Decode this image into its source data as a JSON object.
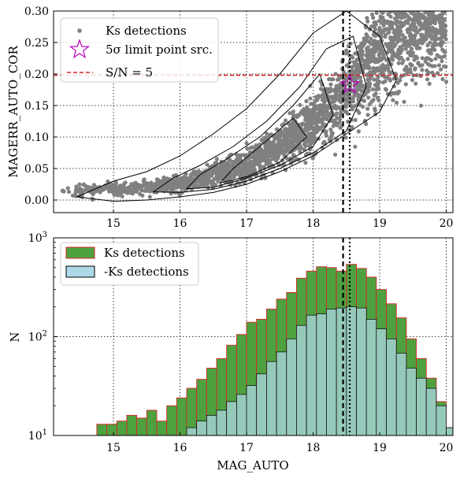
{
  "chart_data": [
    {
      "type": "scatter",
      "xlabel": "",
      "ylabel": "MAGERR_AUTO_COR",
      "xlim": [
        14.1,
        20.1
      ],
      "ylim": [
        -0.02,
        0.3
      ],
      "xticks": [
        "15",
        "16",
        "17",
        "18",
        "19",
        "20"
      ],
      "yticks": [
        "0.00",
        "0.05",
        "0.10",
        "0.15",
        "0.20",
        "0.25",
        "0.30"
      ],
      "grid": true,
      "legend_position": "top-left",
      "legend": [
        "Ks detections",
        "5σ limit point src.",
        "S/N = 5"
      ],
      "series": [
        {
          "name": "Ks detections",
          "style": "scatter",
          "color": "#808080",
          "trend": {
            "x": [
              14.2,
              14.8,
              15.0,
              15.5,
              16.0,
              16.5,
              17.0,
              17.5,
              18.0,
              18.5,
              19.0,
              19.5,
              20.0
            ],
            "y": [
              0.015,
              0.016,
              0.018,
              0.02,
              0.027,
              0.04,
              0.057,
              0.085,
              0.123,
              0.17,
              0.232,
              0.29,
              0.3
            ]
          }
        },
        {
          "name": "5σ limit point src.",
          "style": "marker-star",
          "color": "#bf00bf",
          "x": [
            18.55
          ],
          "y": [
            0.183
          ]
        },
        {
          "name": "S/N = 5",
          "style": "dashed-horizontal",
          "color": "#d62728",
          "y": 0.198
        }
      ],
      "vlines": [
        {
          "x": 18.45,
          "style": "dashed",
          "color": "#000000"
        },
        {
          "x": 18.55,
          "style": "dotted",
          "color": "#000000"
        }
      ],
      "contours": [
        {
          "level": 1,
          "x": [
            14.45,
            15.0,
            15.5,
            16.0,
            16.5,
            17.0,
            17.5,
            18.0,
            18.5,
            19.0,
            19.25,
            19.0,
            18.5,
            18.0,
            17.5,
            17.0,
            16.5,
            16.0,
            15.5,
            15.0,
            14.45
          ],
          "y": [
            0.005,
            -0.002,
            0.0,
            0.005,
            0.012,
            0.025,
            0.045,
            0.07,
            0.105,
            0.14,
            0.19,
            0.26,
            0.3,
            0.265,
            0.2,
            0.145,
            0.105,
            0.07,
            0.045,
            0.03,
            0.005
          ]
        },
        {
          "level": 2,
          "x": [
            15.6,
            16.0,
            16.5,
            17.0,
            17.5,
            18.0,
            18.5,
            18.8,
            18.6,
            18.2,
            17.8,
            17.3,
            16.8,
            16.3,
            15.9,
            15.6
          ],
          "y": [
            0.013,
            0.012,
            0.017,
            0.03,
            0.05,
            0.075,
            0.11,
            0.18,
            0.26,
            0.24,
            0.18,
            0.125,
            0.085,
            0.055,
            0.035,
            0.013
          ]
        },
        {
          "level": 3,
          "x": [
            16.1,
            16.5,
            17.0,
            17.5,
            18.0,
            18.3,
            18.1,
            17.7,
            17.2,
            16.7,
            16.3,
            16.1
          ],
          "y": [
            0.018,
            0.02,
            0.035,
            0.055,
            0.085,
            0.135,
            0.2,
            0.15,
            0.1,
            0.065,
            0.04,
            0.018
          ]
        },
        {
          "level": 4,
          "x": [
            16.6,
            17.0,
            17.5,
            17.9,
            17.7,
            17.2,
            16.8,
            16.6
          ],
          "y": [
            0.027,
            0.037,
            0.06,
            0.1,
            0.13,
            0.085,
            0.05,
            0.027
          ]
        }
      ]
    },
    {
      "type": "bar",
      "style": "histogram",
      "xlabel": "MAG_AUTO",
      "ylabel": "N",
      "yscale": "log",
      "xlim": [
        14.1,
        20.1
      ],
      "ylim": [
        10,
        1000
      ],
      "xticks": [
        "15",
        "16",
        "17",
        "18",
        "19",
        "20"
      ],
      "yticks": [
        "10^1",
        "10^2",
        "10^3"
      ],
      "grid": true,
      "legend_position": "top-left",
      "legend": [
        "Ks detections",
        "-Ks detections"
      ],
      "bin_edges": [
        14.75,
        14.9,
        15.05,
        15.2,
        15.35,
        15.5,
        15.65,
        15.8,
        15.95,
        16.1,
        16.25,
        16.4,
        16.55,
        16.7,
        16.85,
        17.0,
        17.15,
        17.3,
        17.45,
        17.6,
        17.75,
        17.9,
        18.05,
        18.2,
        18.35,
        18.5,
        18.65,
        18.8,
        18.95,
        19.1,
        19.25,
        19.4,
        19.55,
        19.7,
        19.85,
        20.0,
        20.15
      ],
      "series": [
        {
          "name": "Ks detections",
          "color": "#4ea13f",
          "edgecolor": "#d62728",
          "values": [
            13,
            13,
            14,
            16,
            15,
            18,
            14,
            20,
            24,
            30,
            37,
            48,
            60,
            82,
            105,
            140,
            150,
            190,
            240,
            280,
            390,
            460,
            510,
            500,
            460,
            540,
            490,
            400,
            300,
            215,
            155,
            95,
            60,
            38,
            22,
            12
          ]
        },
        {
          "name": "-Ks detections",
          "color": "#add8e6",
          "edgecolor": "#000000",
          "values": [
            0,
            0,
            0,
            0,
            0,
            0,
            0,
            0,
            0,
            12,
            14,
            16,
            18,
            22,
            26,
            32,
            42,
            56,
            70,
            95,
            130,
            165,
            170,
            190,
            195,
            200,
            195,
            150,
            120,
            95,
            68,
            48,
            38,
            30,
            20,
            12
          ]
        }
      ],
      "vlines": [
        {
          "x": 18.45,
          "style": "dashed",
          "color": "#000000"
        },
        {
          "x": 18.55,
          "style": "dotted",
          "color": "#000000"
        }
      ]
    }
  ]
}
